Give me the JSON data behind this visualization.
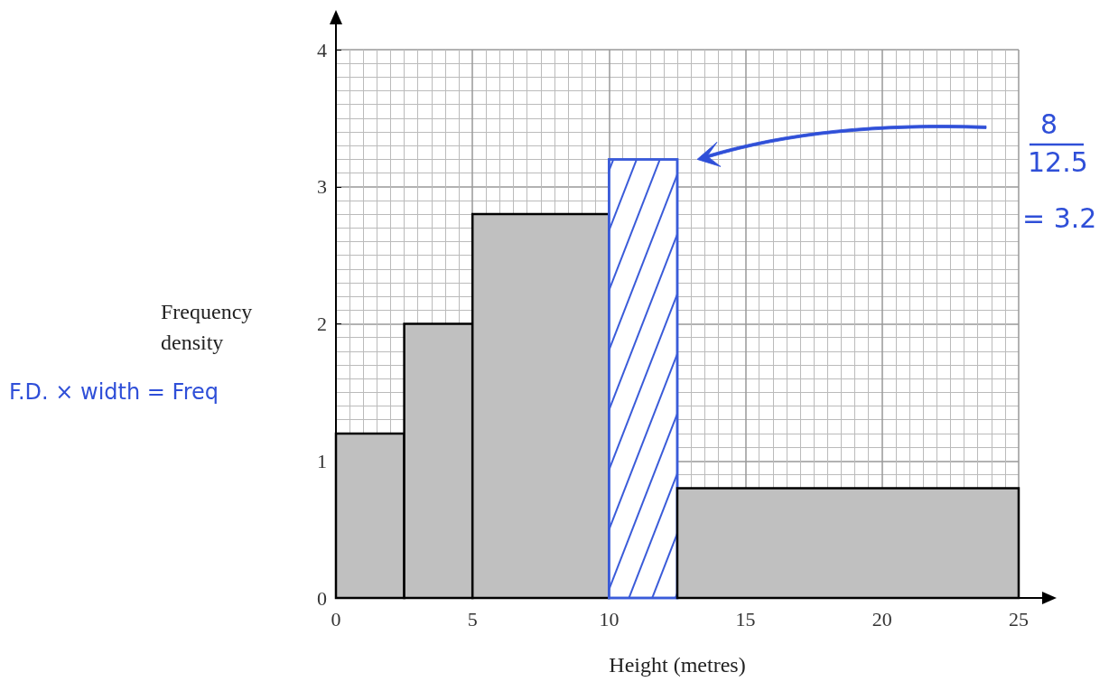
{
  "chart_data": {
    "type": "histogram",
    "xlabel": "Height (metres)",
    "ylabel": "Frequency density",
    "bins": [
      0,
      2.5,
      5,
      10,
      12.5,
      25
    ],
    "values": [
      1.2,
      2,
      2.8,
      3.2,
      0.8
    ],
    "colors": [
      "#c0c0c0",
      "#c0c0c0",
      "#c0c0c0",
      "#3a5bd9",
      "#c0c0c0"
    ],
    "xlim": [
      0,
      25
    ],
    "xticks": [
      0,
      5,
      10,
      15,
      20,
      25
    ],
    "ylim": [
      0,
      4
    ],
    "yticks": [
      0,
      1,
      2,
      3,
      4
    ],
    "grid": true,
    "annotations": [
      "F.D. × width = Freq",
      "8",
      "12.5",
      "= 3.2"
    ]
  }
}
